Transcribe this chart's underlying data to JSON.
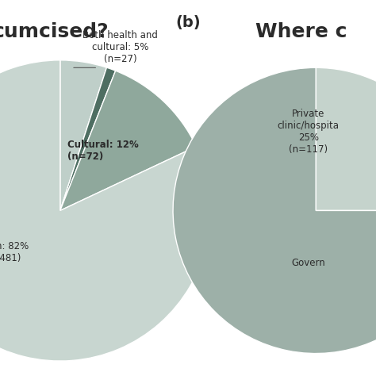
{
  "pie1_sizes": [
    5,
    12,
    82,
    1
  ],
  "pie1_colors": [
    "#c5d5cb",
    "#8fa89c",
    "#c5d5cb",
    "#5e7d70"
  ],
  "pie1_startangle": 90,
  "pie2_sizes": [
    25,
    75
  ],
  "pie2_colors": [
    "#c8d8d0",
    "#a8bcb4"
  ],
  "pie2_startangle": 90,
  "bg_color": "#ffffff",
  "text_color": "#2b2b2b",
  "label_both": "Both health and\ncultural: 5%\n(n=27)",
  "label_cultural": "Cultural: 12%\n(n=72)",
  "label_health": "h: 82%\n-481)",
  "label_private": "Private\nclinic/hospita\n25%\n(n=117)",
  "label_govern": "Govern",
  "title_a_partial": "cumcised?",
  "title_b": "(b)",
  "title_where": "Where c",
  "fontsize_title": 18,
  "fontsize_label": 9
}
